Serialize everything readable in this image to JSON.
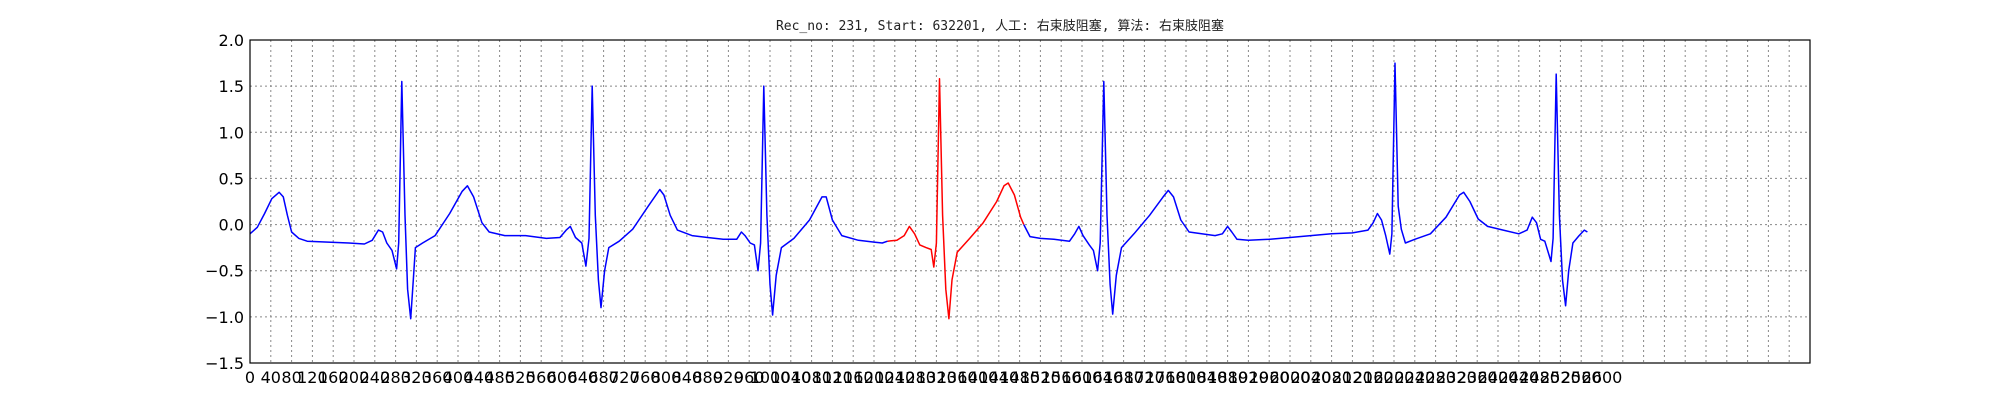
{
  "chart_data": {
    "type": "line",
    "title": "Rec_no: 231, Start: 632201, 人工: 右束肢阻塞, 算法: 右束肢阻塞",
    "xlabel": "",
    "ylabel": "",
    "xlim": [
      0,
      3000
    ],
    "ylim": [
      -1.5,
      2.0
    ],
    "yticks": [
      "2.0",
      "1.5",
      "1.0",
      "0.5",
      "0.0",
      "−0.5",
      "−1.0",
      "−1.5"
    ],
    "grid": true,
    "xtick_step": 40,
    "series": [
      {
        "color": "#0000ff",
        "points": [
          [
            0,
            -0.1
          ],
          [
            14,
            -0.03
          ],
          [
            28,
            0.12
          ],
          [
            42,
            0.28
          ],
          [
            56,
            0.35
          ],
          [
            64,
            0.3
          ],
          [
            72,
            0.1
          ],
          [
            80,
            -0.08
          ],
          [
            94,
            -0.15
          ],
          [
            110,
            -0.18
          ],
          [
            150,
            -0.19
          ],
          [
            190,
            -0.2
          ],
          [
            220,
            -0.21
          ],
          [
            235,
            -0.17
          ],
          [
            247,
            -0.06
          ],
          [
            255,
            -0.08
          ],
          [
            263,
            -0.2
          ],
          [
            273,
            -0.28
          ],
          [
            282,
            -0.48
          ],
          [
            286,
            -0.2
          ],
          [
            292,
            1.55
          ],
          [
            298,
            0.1
          ],
          [
            303,
            -0.7
          ],
          [
            309,
            -1.02
          ],
          [
            314,
            -0.6
          ],
          [
            318,
            -0.25
          ],
          [
            332,
            -0.2
          ],
          [
            356,
            -0.12
          ],
          [
            384,
            0.12
          ],
          [
            408,
            0.36
          ],
          [
            418,
            0.42
          ],
          [
            430,
            0.3
          ],
          [
            446,
            0.02
          ],
          [
            460,
            -0.08
          ],
          [
            490,
            -0.12
          ],
          [
            530,
            -0.12
          ],
          [
            570,
            -0.15
          ],
          [
            596,
            -0.14
          ],
          [
            608,
            -0.06
          ],
          [
            616,
            -0.02
          ],
          [
            626,
            -0.14
          ],
          [
            638,
            -0.2
          ],
          [
            646,
            -0.45
          ],
          [
            652,
            -0.15
          ],
          [
            658,
            1.5
          ],
          [
            664,
            0.1
          ],
          [
            670,
            -0.6
          ],
          [
            675,
            -0.9
          ],
          [
            682,
            -0.5
          ],
          [
            690,
            -0.25
          ],
          [
            710,
            -0.18
          ],
          [
            736,
            -0.05
          ],
          [
            766,
            0.2
          ],
          [
            788,
            0.38
          ],
          [
            796,
            0.32
          ],
          [
            808,
            0.1
          ],
          [
            822,
            -0.06
          ],
          [
            850,
            -0.12
          ],
          [
            880,
            -0.14
          ],
          [
            910,
            -0.16
          ],
          [
            936,
            -0.16
          ],
          [
            945,
            -0.08
          ],
          [
            952,
            -0.12
          ],
          [
            962,
            -0.2
          ],
          [
            970,
            -0.22
          ],
          [
            977,
            -0.5
          ],
          [
            982,
            -0.2
          ],
          [
            988,
            1.5
          ],
          [
            994,
            0.1
          ],
          [
            1000,
            -0.65
          ],
          [
            1005,
            -0.98
          ],
          [
            1012,
            -0.55
          ],
          [
            1022,
            -0.25
          ],
          [
            1046,
            -0.15
          ],
          [
            1076,
            0.05
          ],
          [
            1100,
            0.3
          ],
          [
            1108,
            0.3
          ],
          [
            1120,
            0.05
          ],
          [
            1138,
            -0.12
          ],
          [
            1170,
            -0.17
          ],
          [
            1200,
            -0.19
          ],
          [
            1216,
            -0.2
          ],
          [
            1226,
            -0.18
          ]
        ]
      },
      {
        "color": "#ff0000",
        "points": [
          [
            1226,
            -0.18
          ],
          [
            1244,
            -0.17
          ],
          [
            1258,
            -0.12
          ],
          [
            1268,
            -0.02
          ],
          [
            1278,
            -0.1
          ],
          [
            1288,
            -0.22
          ],
          [
            1300,
            -0.25
          ],
          [
            1310,
            -0.27
          ],
          [
            1315,
            -0.46
          ],
          [
            1320,
            -0.2
          ],
          [
            1326,
            1.58
          ],
          [
            1332,
            0.1
          ],
          [
            1338,
            -0.7
          ],
          [
            1344,
            -1.02
          ],
          [
            1350,
            -0.6
          ],
          [
            1360,
            -0.3
          ],
          [
            1384,
            -0.15
          ],
          [
            1410,
            0.02
          ],
          [
            1436,
            0.25
          ],
          [
            1450,
            0.42
          ],
          [
            1458,
            0.45
          ],
          [
            1470,
            0.32
          ],
          [
            1482,
            0.08
          ],
          [
            1488,
            0.0
          ]
        ]
      },
      {
        "color": "#0000ff",
        "points": [
          [
            1488,
            0.0
          ],
          [
            1500,
            -0.13
          ],
          [
            1520,
            -0.15
          ],
          [
            1546,
            -0.16
          ],
          [
            1576,
            -0.18
          ],
          [
            1586,
            -0.1
          ],
          [
            1594,
            -0.02
          ],
          [
            1602,
            -0.12
          ],
          [
            1614,
            -0.22
          ],
          [
            1622,
            -0.28
          ],
          [
            1630,
            -0.5
          ],
          [
            1635,
            -0.2
          ],
          [
            1642,
            1.55
          ],
          [
            1648,
            0.1
          ],
          [
            1654,
            -0.65
          ],
          [
            1659,
            -0.97
          ],
          [
            1666,
            -0.55
          ],
          [
            1676,
            -0.25
          ],
          [
            1700,
            -0.1
          ],
          [
            1730,
            0.1
          ],
          [
            1756,
            0.3
          ],
          [
            1766,
            0.37
          ],
          [
            1776,
            0.3
          ],
          [
            1790,
            0.05
          ],
          [
            1806,
            -0.08
          ],
          [
            1830,
            -0.1
          ],
          [
            1856,
            -0.12
          ],
          [
            1870,
            -0.1
          ],
          [
            1880,
            -0.02
          ],
          [
            1888,
            -0.08
          ],
          [
            1898,
            -0.16
          ],
          [
            1920,
            -0.17
          ],
          [
            1960,
            -0.16
          ],
          [
            2000,
            -0.14
          ],
          [
            2040,
            -0.12
          ],
          [
            2080,
            -0.1
          ],
          [
            2120,
            -0.09
          ],
          [
            2150,
            -0.06
          ],
          [
            2160,
            0.02
          ],
          [
            2168,
            0.12
          ],
          [
            2176,
            0.05
          ],
          [
            2184,
            -0.12
          ],
          [
            2192,
            -0.32
          ],
          [
            2196,
            -0.1
          ],
          [
            2202,
            1.75
          ],
          [
            2208,
            0.2
          ],
          [
            2214,
            -0.05
          ],
          [
            2222,
            -0.2
          ],
          [
            2240,
            -0.16
          ],
          [
            2270,
            -0.1
          ],
          [
            2300,
            0.08
          ],
          [
            2326,
            0.32
          ],
          [
            2334,
            0.35
          ],
          [
            2346,
            0.25
          ],
          [
            2362,
            0.06
          ],
          [
            2380,
            -0.02
          ],
          [
            2410,
            -0.06
          ],
          [
            2440,
            -0.1
          ],
          [
            2456,
            -0.06
          ],
          [
            2466,
            0.08
          ],
          [
            2474,
            0.02
          ],
          [
            2482,
            -0.16
          ],
          [
            2490,
            -0.18
          ],
          [
            2502,
            -0.4
          ],
          [
            2506,
            -0.15
          ],
          [
            2512,
            1.63
          ],
          [
            2518,
            0.1
          ],
          [
            2524,
            -0.6
          ],
          [
            2530,
            -0.88
          ],
          [
            2536,
            -0.5
          ],
          [
            2544,
            -0.2
          ],
          [
            2556,
            -0.12
          ],
          [
            2566,
            -0.06
          ],
          [
            2572,
            -0.08
          ]
        ]
      }
    ]
  }
}
